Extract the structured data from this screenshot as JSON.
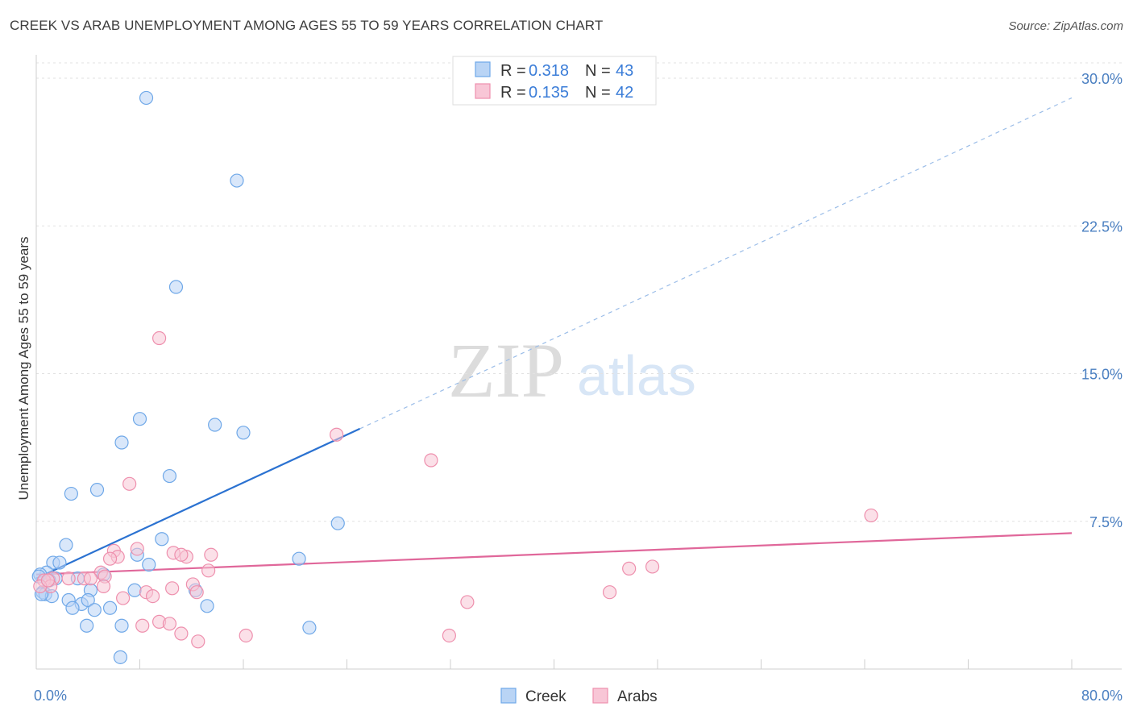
{
  "title": "CREEK VS ARAB UNEMPLOYMENT AMONG AGES 55 TO 59 YEARS CORRELATION CHART",
  "source": "Source: ZipAtlas.com",
  "watermark": {
    "zip": "ZIP",
    "atlas": "atlas"
  },
  "chart_data": {
    "type": "scatter",
    "title": "CREEK VS ARAB UNEMPLOYMENT AMONG AGES 55 TO 59 YEARS CORRELATION CHART",
    "xlabel": "",
    "ylabel": "Unemployment Among Ages 55 to 59 years",
    "xlim": [
      0,
      80
    ],
    "ylim": [
      0,
      30
    ],
    "x_tick_labels": [
      "0.0%",
      "80.0%"
    ],
    "y_ticks": [
      7.5,
      15.0,
      22.5,
      30.0
    ],
    "y_tick_labels": [
      "7.5%",
      "15.0%",
      "22.5%",
      "30.0%"
    ],
    "legend": [
      {
        "name": "Creek",
        "r_label": "R =",
        "r_value": "0.318",
        "n_label": "N =",
        "n_value": "43",
        "color": "#6fa8e8",
        "fill": "#b9d4f5"
      },
      {
        "name": "Arabs",
        "r_label": "R =",
        "r_value": "0.135",
        "n_label": "N =",
        "n_value": "42",
        "color": "#ee8fad",
        "fill": "#f8c6d6"
      }
    ],
    "series": [
      {
        "name": "Creek",
        "color": "#6fa8e8",
        "fill": "#b9d4f5",
        "trend": {
          "x0": 0,
          "y0": 4.6,
          "x1": 25,
          "y1": 12.2,
          "extend_x": 80,
          "extend_y": 29.0,
          "color": "#2b72d1"
        },
        "points": [
          [
            8.5,
            29.0
          ],
          [
            15.5,
            24.8
          ],
          [
            10.8,
            19.4
          ],
          [
            8.0,
            12.7
          ],
          [
            13.8,
            12.4
          ],
          [
            16.0,
            12.0
          ],
          [
            6.6,
            11.5
          ],
          [
            10.3,
            9.8
          ],
          [
            4.7,
            9.1
          ],
          [
            2.7,
            8.9
          ],
          [
            23.3,
            7.4
          ],
          [
            9.7,
            6.6
          ],
          [
            2.3,
            6.3
          ],
          [
            7.8,
            5.8
          ],
          [
            20.3,
            5.6
          ],
          [
            1.3,
            5.4
          ],
          [
            1.8,
            5.4
          ],
          [
            8.7,
            5.3
          ],
          [
            0.8,
            4.9
          ],
          [
            5.2,
            4.8
          ],
          [
            0.3,
            4.8
          ],
          [
            1.5,
            4.6
          ],
          [
            3.2,
            4.6
          ],
          [
            0.5,
            3.9
          ],
          [
            4.2,
            4.0
          ],
          [
            7.6,
            4.0
          ],
          [
            12.3,
            4.0
          ],
          [
            2.5,
            3.5
          ],
          [
            0.7,
            3.8
          ],
          [
            1.2,
            3.7
          ],
          [
            3.5,
            3.3
          ],
          [
            4.0,
            3.5
          ],
          [
            5.7,
            3.1
          ],
          [
            2.8,
            3.1
          ],
          [
            4.5,
            3.0
          ],
          [
            13.2,
            3.2
          ],
          [
            0.4,
            3.8
          ],
          [
            6.6,
            2.2
          ],
          [
            3.9,
            2.2
          ],
          [
            21.1,
            2.1
          ],
          [
            6.5,
            0.6
          ],
          [
            0.2,
            4.7
          ],
          [
            1.0,
            4.5
          ]
        ]
      },
      {
        "name": "Arabs",
        "color": "#ee8fad",
        "fill": "#f8c6d6",
        "trend": {
          "x0": 0,
          "y0": 4.8,
          "x1": 80,
          "y1": 6.9,
          "color": "#e0679a"
        },
        "points": [
          [
            9.5,
            16.8
          ],
          [
            23.2,
            11.9
          ],
          [
            30.5,
            10.6
          ],
          [
            7.2,
            9.4
          ],
          [
            64.5,
            7.8
          ],
          [
            7.8,
            6.1
          ],
          [
            6.0,
            6.0
          ],
          [
            10.6,
            5.9
          ],
          [
            13.5,
            5.8
          ],
          [
            6.3,
            5.7
          ],
          [
            11.6,
            5.7
          ],
          [
            5.7,
            5.6
          ],
          [
            11.2,
            5.8
          ],
          [
            45.8,
            5.1
          ],
          [
            47.6,
            5.2
          ],
          [
            13.3,
            5.0
          ],
          [
            5.0,
            4.9
          ],
          [
            3.7,
            4.6
          ],
          [
            4.2,
            4.6
          ],
          [
            2.5,
            4.6
          ],
          [
            5.3,
            4.7
          ],
          [
            1.3,
            4.6
          ],
          [
            12.1,
            4.3
          ],
          [
            0.6,
            4.5
          ],
          [
            10.5,
            4.1
          ],
          [
            5.2,
            4.2
          ],
          [
            1.1,
            4.2
          ],
          [
            0.3,
            4.2
          ],
          [
            8.5,
            3.9
          ],
          [
            9.0,
            3.7
          ],
          [
            6.7,
            3.6
          ],
          [
            44.3,
            3.9
          ],
          [
            33.3,
            3.4
          ],
          [
            0.9,
            4.5
          ],
          [
            12.4,
            3.9
          ],
          [
            9.5,
            2.4
          ],
          [
            10.3,
            2.3
          ],
          [
            8.2,
            2.2
          ],
          [
            11.2,
            1.8
          ],
          [
            16.2,
            1.7
          ],
          [
            31.9,
            1.7
          ],
          [
            12.5,
            1.4
          ]
        ]
      }
    ]
  }
}
